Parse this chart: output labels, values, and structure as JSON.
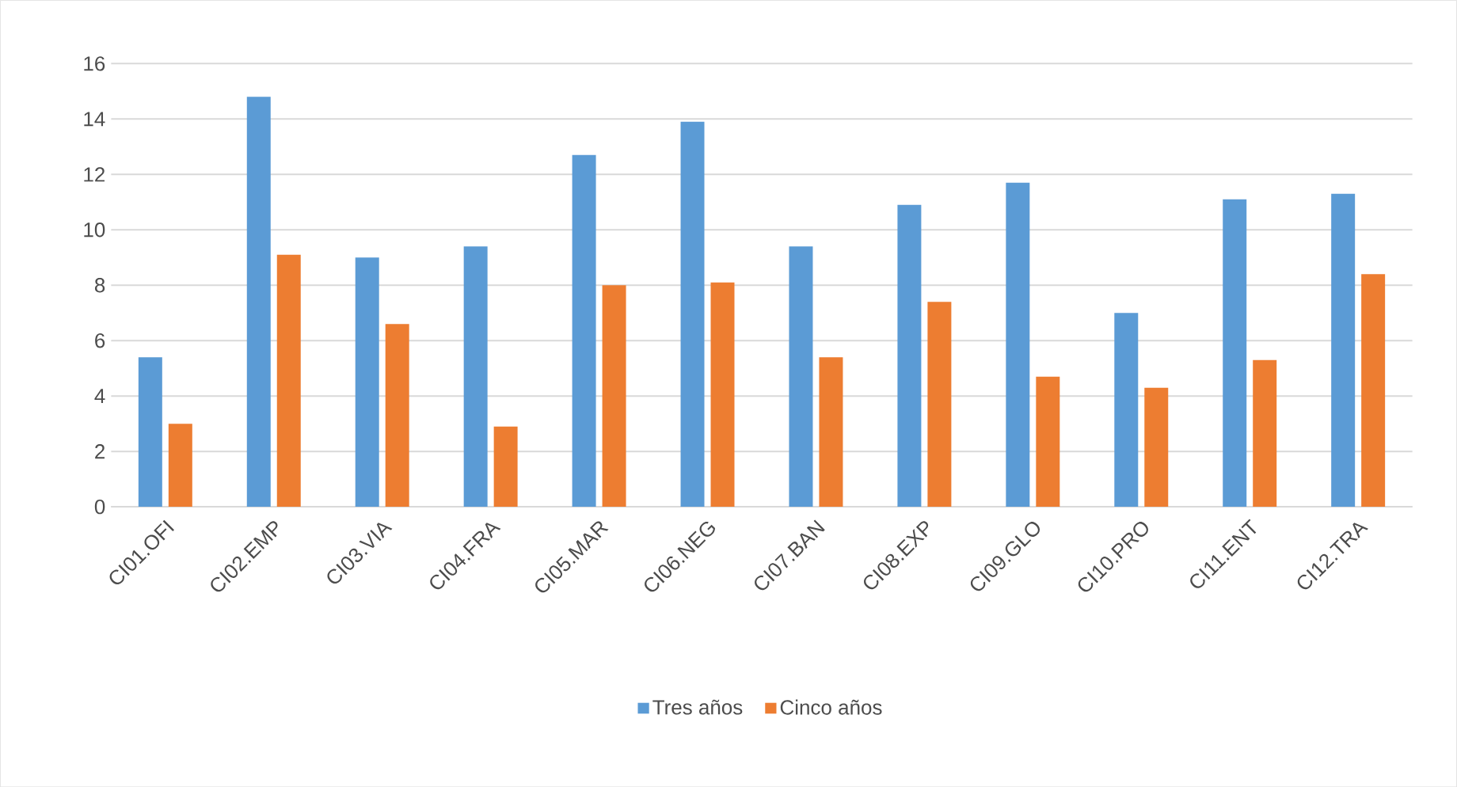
{
  "chart_data": {
    "type": "bar",
    "categories": [
      "CI01.OFI",
      "CI02.EMP",
      "CI03.VIA",
      "CI04.FRA",
      "CI05.MAR",
      "CI06.NEG",
      "CI07.BAN",
      "CI08.EXP",
      "CI09.GLO",
      "CI10.PRO",
      "CI11.ENT",
      "CI12.TRA"
    ],
    "series": [
      {
        "name": "Tres años",
        "color": "#5b9bd5",
        "values": [
          5.4,
          14.8,
          9.0,
          9.4,
          12.7,
          13.9,
          9.4,
          10.9,
          11.7,
          7.0,
          11.1,
          11.3
        ]
      },
      {
        "name": "Cinco años",
        "color": "#ed7d31",
        "values": [
          3.0,
          9.1,
          6.6,
          2.9,
          8.0,
          8.1,
          5.4,
          7.4,
          4.7,
          4.3,
          5.3,
          8.4
        ]
      }
    ],
    "ylim": [
      0,
      16
    ],
    "yticks": [
      0,
      2,
      4,
      6,
      8,
      10,
      12,
      14,
      16
    ],
    "grid": "y",
    "legend": "bottom"
  }
}
